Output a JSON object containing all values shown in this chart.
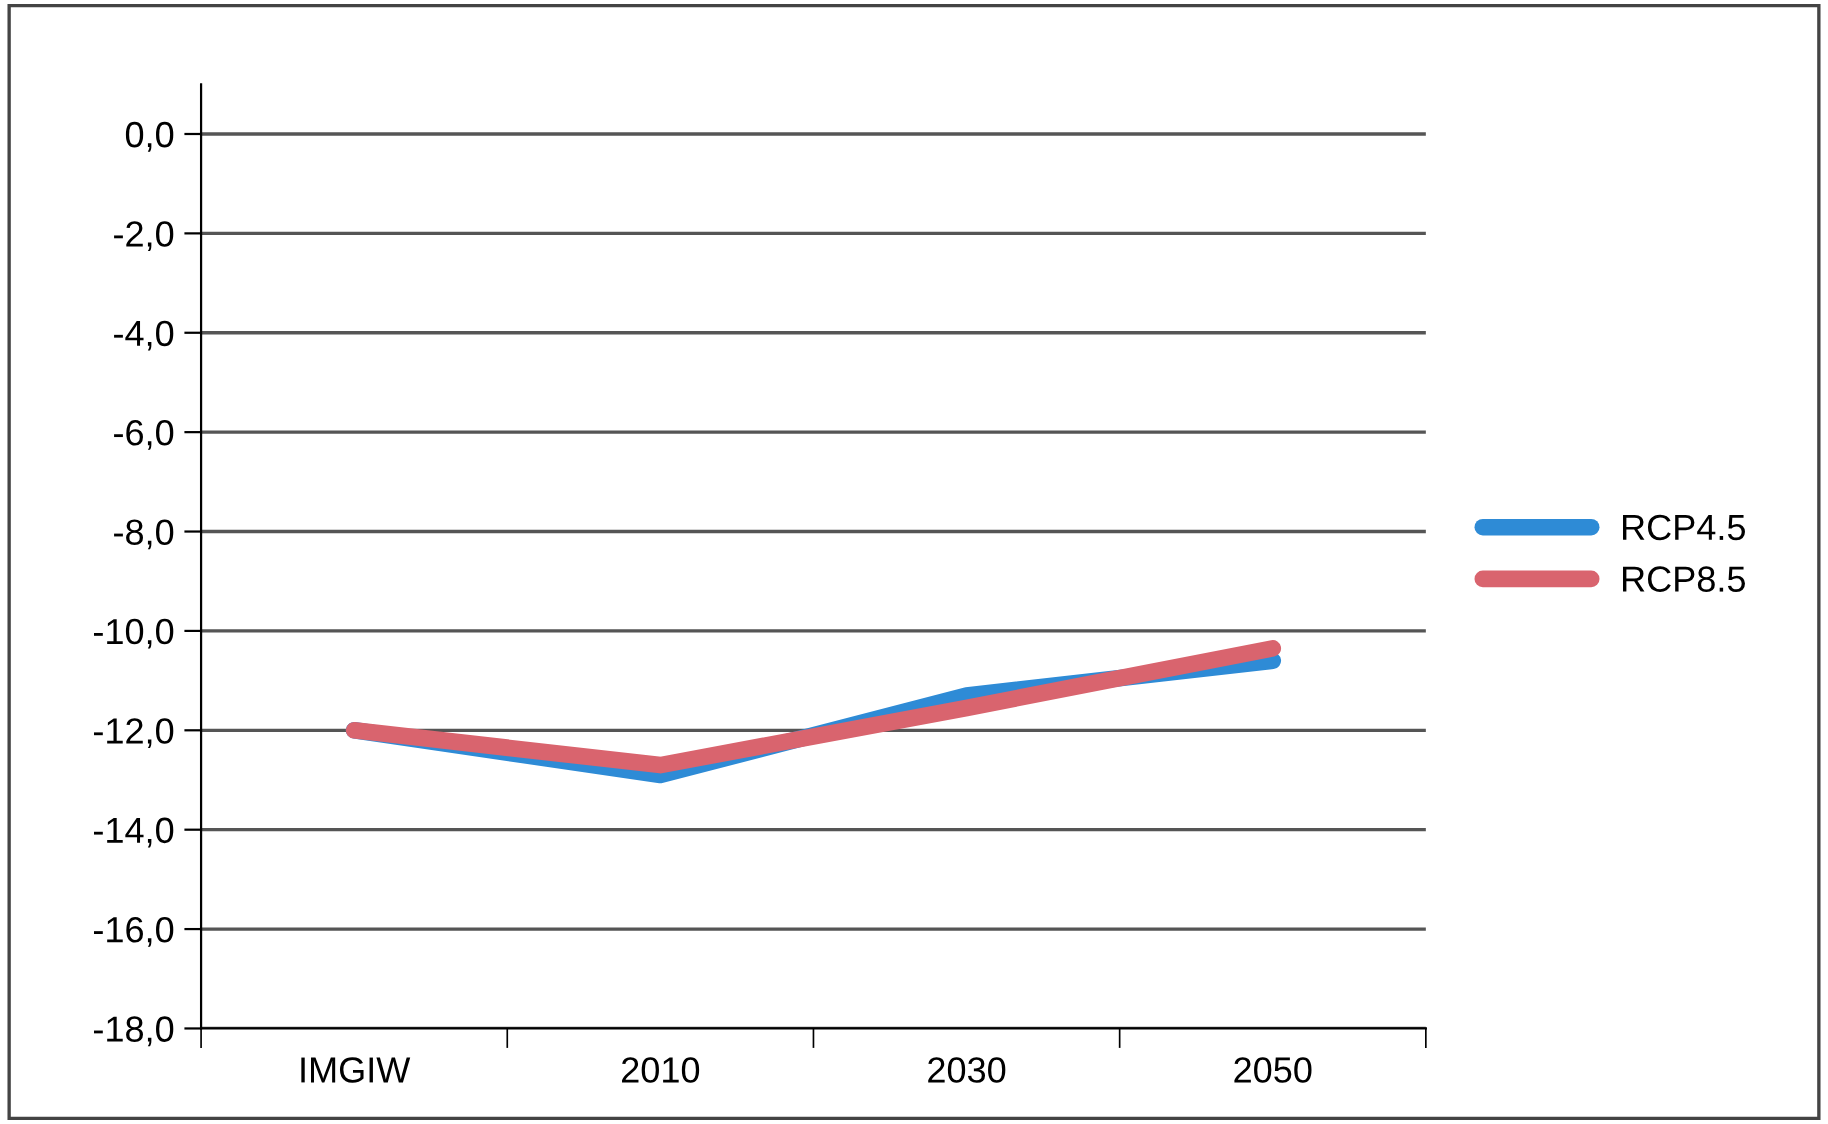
{
  "chart_data": {
    "type": "line",
    "categories": [
      "IMGIW",
      "2010",
      "2030",
      "2050"
    ],
    "series": [
      {
        "name": "RCP4.5",
        "color": "#2e8bd6",
        "values": [
          -12.0,
          -12.9,
          -11.3,
          -10.6
        ]
      },
      {
        "name": "RCP8.5",
        "color": "#d9646e",
        "values": [
          -12.0,
          -12.7,
          -11.55,
          -10.35
        ]
      }
    ],
    "ylim": [
      -18,
      1
    ],
    "yticks": [
      {
        "value": -18,
        "label": "-18,0"
      },
      {
        "value": -16,
        "label": "-16,0"
      },
      {
        "value": -14,
        "label": "-14,0"
      },
      {
        "value": -12,
        "label": "-12,0"
      },
      {
        "value": -10,
        "label": "-10,0"
      },
      {
        "value": -8,
        "label": "-8,0"
      },
      {
        "value": -6,
        "label": "-6,0"
      },
      {
        "value": -4,
        "label": "-4,0"
      },
      {
        "value": -2,
        "label": "-2,0"
      },
      {
        "value": 0,
        "label": "0,0"
      }
    ],
    "grid": "y",
    "legend": "right",
    "marker": "none",
    "line_style": "solid"
  }
}
